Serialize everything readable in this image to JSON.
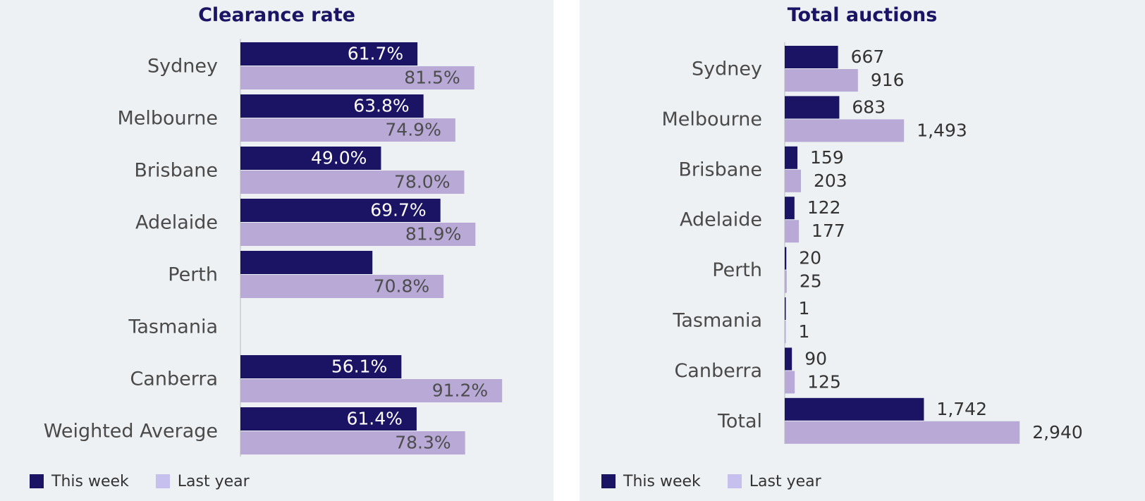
{
  "colors": {
    "this_week": "#1b1464",
    "last_year": "#b8a9d7",
    "legend_last_year": "#c5c0ee",
    "panel_bg": "#edf1f4"
  },
  "legend": {
    "this_week": "This week",
    "last_year": "Last year"
  },
  "chart_data": [
    {
      "type": "bar",
      "orientation": "horizontal",
      "title": "Clearance rate",
      "categories": [
        "Sydney",
        "Melbourne",
        "Brisbane",
        "Adelaide",
        "Perth",
        "Tasmania",
        "Canberra",
        "Weighted Average"
      ],
      "series": [
        {
          "name": "This week",
          "values": [
            61.7,
            63.8,
            49.0,
            69.7,
            46.0,
            null,
            56.1,
            61.4
          ],
          "labels": [
            "61.7%",
            "63.8%",
            "49.0%",
            "69.7%",
            "",
            "",
            "56.1%",
            "61.4%"
          ]
        },
        {
          "name": "Last year",
          "values": [
            81.5,
            74.9,
            78.0,
            81.9,
            70.8,
            null,
            91.2,
            78.3
          ],
          "labels": [
            "81.5%",
            "74.9%",
            "78.0%",
            "81.9%",
            "70.8%",
            "",
            "91.2%",
            "78.3%"
          ]
        }
      ],
      "xlim": [
        0,
        100
      ],
      "label_position": "inside-end",
      "grid": false,
      "legend_position": "bottom-left"
    },
    {
      "type": "bar",
      "orientation": "horizontal",
      "title": "Total auctions",
      "categories": [
        "Sydney",
        "Melbourne",
        "Brisbane",
        "Adelaide",
        "Perth",
        "Tasmania",
        "Canberra",
        "Total"
      ],
      "series": [
        {
          "name": "This week",
          "values": [
            667,
            683,
            159,
            122,
            20,
            1,
            90,
            1742
          ],
          "labels": [
            "667",
            "683",
            "159",
            "122",
            "20",
            "1",
            "90",
            "1,742"
          ]
        },
        {
          "name": "Last year",
          "values": [
            916,
            1493,
            203,
            177,
            25,
            1,
            125,
            2940
          ],
          "labels": [
            "916",
            "1,493",
            "203",
            "177",
            "25",
            "1",
            "125",
            "2,940"
          ]
        }
      ],
      "xlim": [
        0,
        3000
      ],
      "label_position": "outside-end",
      "grid": false,
      "legend_position": "bottom-left"
    }
  ]
}
